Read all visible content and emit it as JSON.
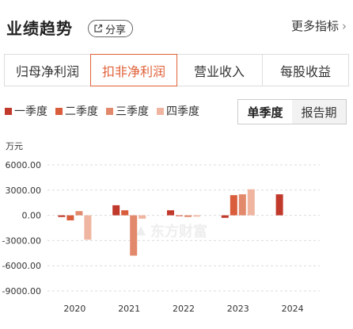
{
  "header": {
    "title": "业绩趋势",
    "share_label": "分享",
    "more_label": "更多指标"
  },
  "tabs": [
    {
      "label": "归母净利润"
    },
    {
      "label": "扣非净利润"
    },
    {
      "label": "营业收入"
    },
    {
      "label": "每股收益"
    }
  ],
  "active_tab": 1,
  "mode": {
    "single_label": "单季度",
    "report_label": "报告期",
    "active": "single"
  },
  "unit_label": "万元",
  "watermark": "东方财富",
  "colors": {
    "accent": "#e0623a",
    "q1": "#c0392b",
    "q2": "#d95c3b",
    "q3": "#e2896b",
    "q4": "#f0b5a0"
  },
  "chart_data": {
    "type": "bar",
    "categories": [
      "2020",
      "2021",
      "2022",
      "2023",
      "2024"
    ],
    "series": [
      {
        "name": "一季度",
        "values": [
          -200,
          1200,
          600,
          -300,
          2500
        ]
      },
      {
        "name": "二季度",
        "values": [
          -600,
          600,
          -100,
          2400,
          null
        ]
      },
      {
        "name": "三季度",
        "values": [
          500,
          -4800,
          -200,
          2500,
          null
        ]
      },
      {
        "name": "四季度",
        "values": [
          -2900,
          -400,
          -150,
          3100,
          null
        ]
      }
    ],
    "ylim": [
      -9000,
      6000
    ],
    "yticks": [
      "6000.00",
      "3000.00",
      "0.00",
      "-3000.00",
      "-6000.00",
      "-9000.00"
    ],
    "ytick_values": [
      6000,
      3000,
      0,
      -3000,
      -6000,
      -9000
    ],
    "ylabel": "万元",
    "grid": true,
    "legend": "top-left"
  }
}
